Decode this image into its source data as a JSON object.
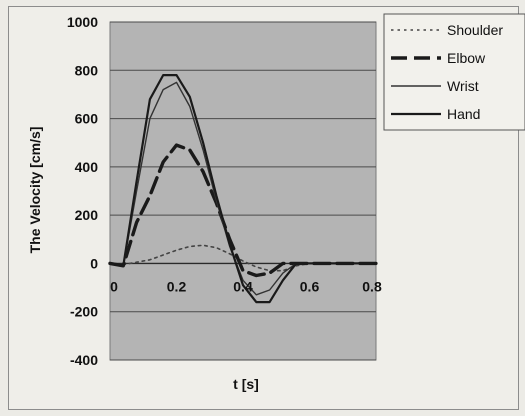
{
  "chart_data": {
    "type": "line",
    "title": "",
    "xlabel": "t [s]",
    "ylabel": "The Velocity [cm/s]",
    "xlim": [
      0,
      0.8
    ],
    "ylim": [
      -400,
      1000
    ],
    "x_ticks": [
      "0",
      "0.2",
      "0.4",
      "0.6",
      "0.8"
    ],
    "y_ticks": [
      "1000",
      "800",
      "600",
      "400",
      "200",
      "0",
      "-200",
      "-400"
    ],
    "grid": "horizontal",
    "plot_background": "#b4b4b4",
    "legend_position": "top-right",
    "x": [
      0,
      0.04,
      0.08,
      0.12,
      0.16,
      0.2,
      0.24,
      0.28,
      0.32,
      0.36,
      0.4,
      0.44,
      0.48,
      0.52,
      0.56,
      0.6,
      0.64,
      0.68,
      0.72,
      0.76,
      0.8
    ],
    "series": [
      {
        "name": "Shoulder",
        "style": "dotted",
        "color": "#444444",
        "values": [
          0,
          -5,
          5,
          15,
          35,
          55,
          70,
          75,
          65,
          40,
          10,
          -15,
          -30,
          -30,
          -10,
          0,
          0,
          0,
          0,
          0,
          0
        ]
      },
      {
        "name": "Elbow",
        "style": "dashed-thick",
        "color": "#1a1a1a",
        "values": [
          0,
          -10,
          170,
          280,
          420,
          490,
          470,
          380,
          250,
          100,
          -30,
          -50,
          -40,
          0,
          0,
          0,
          0,
          0,
          0,
          0,
          0
        ]
      },
      {
        "name": "Wrist",
        "style": "solid-thin",
        "color": "#333333",
        "values": [
          0,
          -10,
          300,
          600,
          720,
          750,
          650,
          470,
          260,
          70,
          -70,
          -130,
          -110,
          -40,
          0,
          0,
          0,
          0,
          0,
          0,
          0
        ]
      },
      {
        "name": "Hand",
        "style": "solid",
        "color": "#1a1a1a",
        "values": [
          0,
          -10,
          340,
          680,
          780,
          780,
          690,
          500,
          280,
          80,
          -90,
          -160,
          -160,
          -70,
          0,
          0,
          0,
          0,
          0,
          0,
          0
        ]
      }
    ]
  }
}
